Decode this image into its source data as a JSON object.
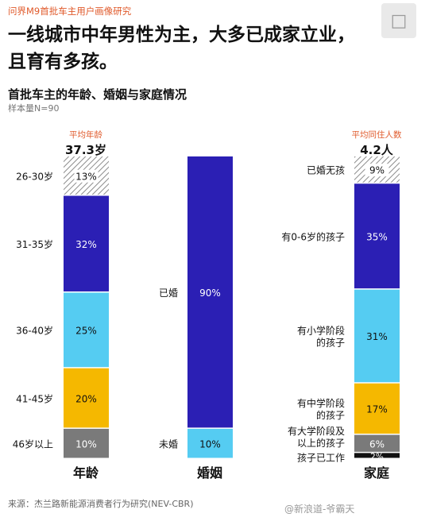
{
  "header": {
    "tag": "问界M9首批车主用户画像研究",
    "headline": "一线城市中年男性为主，大多已成家立业，且育有多孩。",
    "subtitle": "首批车主的年龄、婚姻与家庭情况",
    "sample": "样本量N=90"
  },
  "averages": {
    "age": {
      "label": "平均年龄",
      "value": "37.3岁"
    },
    "household": {
      "label": "平均同住人数",
      "value": "4.2人"
    }
  },
  "footer": {
    "source": "来源：杰兰路新能源消费者行为研究(NEV-CBR)",
    "watermark": "@新浪道-爷霸天"
  },
  "colors": {
    "hatch": "#8c8c8c",
    "navy": "#2b1fb4",
    "sky": "#55ccf2",
    "amber": "#f5b800",
    "gray": "#7a7a7a",
    "black": "#111111",
    "accent": "#e05a2b"
  },
  "chart_data": {
    "type": "bar",
    "stacked": true,
    "normalized": true,
    "categories": [
      "年龄",
      "婚姻",
      "家庭"
    ],
    "series": [
      {
        "category": "年龄",
        "segments": [
          {
            "label": "26-30岁",
            "value": 13,
            "display": "13%",
            "color": "hatch"
          },
          {
            "label": "31-35岁",
            "value": 32,
            "display": "32%",
            "color": "navy"
          },
          {
            "label": "36-40岁",
            "value": 25,
            "display": "25%",
            "color": "sky"
          },
          {
            "label": "41-45岁",
            "value": 20,
            "display": "20%",
            "color": "amber"
          },
          {
            "label": "46岁以上",
            "value": 10,
            "display": "10%",
            "color": "gray"
          }
        ]
      },
      {
        "category": "婚姻",
        "segments": [
          {
            "label": "已婚",
            "value": 90,
            "display": "90%",
            "color": "navy"
          },
          {
            "label": "未婚",
            "value": 10,
            "display": "10%",
            "color": "sky"
          }
        ]
      },
      {
        "category": "家庭",
        "segments": [
          {
            "label": "已婚无孩",
            "value": 9,
            "display": "9%",
            "color": "hatch"
          },
          {
            "label": "有0-6岁的孩子",
            "value": 35,
            "display": "35%",
            "color": "navy"
          },
          {
            "label": "有小学阶段\n的孩子",
            "value": 31,
            "display": "31%",
            "color": "sky"
          },
          {
            "label": "有中学阶段\n的孩子",
            "value": 17,
            "display": "17%",
            "color": "amber"
          },
          {
            "label": "有大学阶段及\n以上的孩子",
            "value": 6,
            "display": "6%",
            "color": "gray"
          },
          {
            "label": "孩子已工作",
            "value": 2,
            "display": "2%",
            "color": "black"
          }
        ]
      }
    ]
  }
}
